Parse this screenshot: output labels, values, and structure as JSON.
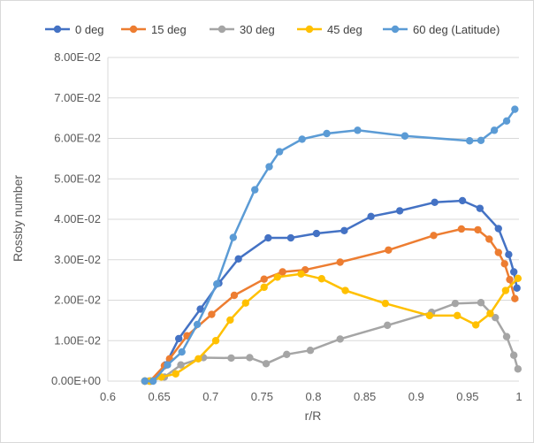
{
  "chart_data": {
    "type": "line",
    "xlabel": "r/R",
    "ylabel": "Rossby number",
    "xlim": [
      0.6,
      1.0
    ],
    "ylim": [
      0.0,
      0.08
    ],
    "x_ticks": [
      "0.6",
      "0.65",
      "0.7",
      "0.75",
      "0.8",
      "0.85",
      "0.9",
      "0.95",
      "1"
    ],
    "x_tick_values": [
      0.6,
      0.65,
      0.7,
      0.75,
      0.8,
      0.85,
      0.9,
      0.95,
      1.0
    ],
    "y_ticks": [
      "0.00E+00",
      "1.00E-02",
      "2.00E-02",
      "3.00E-02",
      "4.00E-02",
      "5.00E-02",
      "6.00E-02",
      "7.00E-02",
      "8.00E-02"
    ],
    "y_tick_values": [
      0.0,
      0.01,
      0.02,
      0.03,
      0.04,
      0.05,
      0.06,
      0.07,
      0.08
    ],
    "grid": "horizontal",
    "legend_position": "top",
    "series": [
      {
        "name": "0 deg",
        "color": "#4472C4",
        "points": [
          [
            0.636,
            0.0
          ],
          [
            0.642,
            0.0
          ],
          [
            0.656,
            0.004
          ],
          [
            0.669,
            0.0105
          ],
          [
            0.69,
            0.0178
          ],
          [
            0.708,
            0.0242
          ],
          [
            0.727,
            0.0302
          ],
          [
            0.756,
            0.0354
          ],
          [
            0.778,
            0.0354
          ],
          [
            0.803,
            0.0365
          ],
          [
            0.83,
            0.0372
          ],
          [
            0.856,
            0.0407
          ],
          [
            0.884,
            0.0421
          ],
          [
            0.918,
            0.0442
          ],
          [
            0.945,
            0.0446
          ],
          [
            0.962,
            0.0427
          ],
          [
            0.98,
            0.0377
          ],
          [
            0.99,
            0.0313
          ],
          [
            0.995,
            0.027
          ],
          [
            0.998,
            0.023
          ]
        ]
      },
      {
        "name": "15 deg",
        "color": "#ED7D31",
        "points": [
          [
            0.636,
            0.0
          ],
          [
            0.641,
            0.0
          ],
          [
            0.655,
            0.0038
          ],
          [
            0.66,
            0.0055
          ],
          [
            0.677,
            0.0112
          ],
          [
            0.701,
            0.0165
          ],
          [
            0.723,
            0.0212
          ],
          [
            0.752,
            0.0252
          ],
          [
            0.77,
            0.027
          ],
          [
            0.792,
            0.0275
          ],
          [
            0.826,
            0.0294
          ],
          [
            0.873,
            0.0324
          ],
          [
            0.917,
            0.036
          ],
          [
            0.944,
            0.0376
          ],
          [
            0.96,
            0.0374
          ],
          [
            0.971,
            0.0351
          ],
          [
            0.98,
            0.0318
          ],
          [
            0.986,
            0.029
          ],
          [
            0.991,
            0.0251
          ],
          [
            0.996,
            0.0204
          ]
        ]
      },
      {
        "name": "30 deg",
        "color": "#A5A5A5",
        "points": [
          [
            0.636,
            0.0
          ],
          [
            0.64,
            0.0
          ],
          [
            0.655,
            0.001
          ],
          [
            0.671,
            0.004
          ],
          [
            0.693,
            0.0058
          ],
          [
            0.72,
            0.0057
          ],
          [
            0.738,
            0.0058
          ],
          [
            0.754,
            0.0043
          ],
          [
            0.774,
            0.0066
          ],
          [
            0.797,
            0.0076
          ],
          [
            0.826,
            0.0104
          ],
          [
            0.872,
            0.0138
          ],
          [
            0.915,
            0.017
          ],
          [
            0.938,
            0.0192
          ],
          [
            0.963,
            0.0194
          ],
          [
            0.977,
            0.0157
          ],
          [
            0.988,
            0.011
          ],
          [
            0.995,
            0.0064
          ],
          [
            0.999,
            0.003
          ]
        ]
      },
      {
        "name": "45 deg",
        "color": "#FFC000",
        "points": [
          [
            0.636,
            0.0
          ],
          [
            0.641,
            0.0
          ],
          [
            0.652,
            0.001
          ],
          [
            0.666,
            0.0018
          ],
          [
            0.688,
            0.0055
          ],
          [
            0.705,
            0.01
          ],
          [
            0.719,
            0.0151
          ],
          [
            0.734,
            0.0193
          ],
          [
            0.752,
            0.0232
          ],
          [
            0.765,
            0.0257
          ],
          [
            0.788,
            0.0265
          ],
          [
            0.808,
            0.0253
          ],
          [
            0.831,
            0.0224
          ],
          [
            0.87,
            0.0192
          ],
          [
            0.913,
            0.0162
          ],
          [
            0.94,
            0.0162
          ],
          [
            0.958,
            0.0139
          ],
          [
            0.972,
            0.0167
          ],
          [
            0.987,
            0.0224
          ],
          [
            0.999,
            0.0254
          ]
        ]
      },
      {
        "name": "60 deg (Latitude)",
        "color": "#5B9BD5",
        "points": [
          [
            0.636,
            0.0
          ],
          [
            0.644,
            0.0
          ],
          [
            0.658,
            0.004
          ],
          [
            0.672,
            0.0072
          ],
          [
            0.687,
            0.014
          ],
          [
            0.706,
            0.024
          ],
          [
            0.722,
            0.0355
          ],
          [
            0.743,
            0.0473
          ],
          [
            0.757,
            0.053
          ],
          [
            0.767,
            0.0567
          ],
          [
            0.789,
            0.0598
          ],
          [
            0.813,
            0.0612
          ],
          [
            0.843,
            0.062
          ],
          [
            0.889,
            0.0606
          ],
          [
            0.952,
            0.0594
          ],
          [
            0.963,
            0.0595
          ],
          [
            0.976,
            0.062
          ],
          [
            0.988,
            0.0643
          ],
          [
            0.996,
            0.0672
          ]
        ]
      }
    ]
  }
}
